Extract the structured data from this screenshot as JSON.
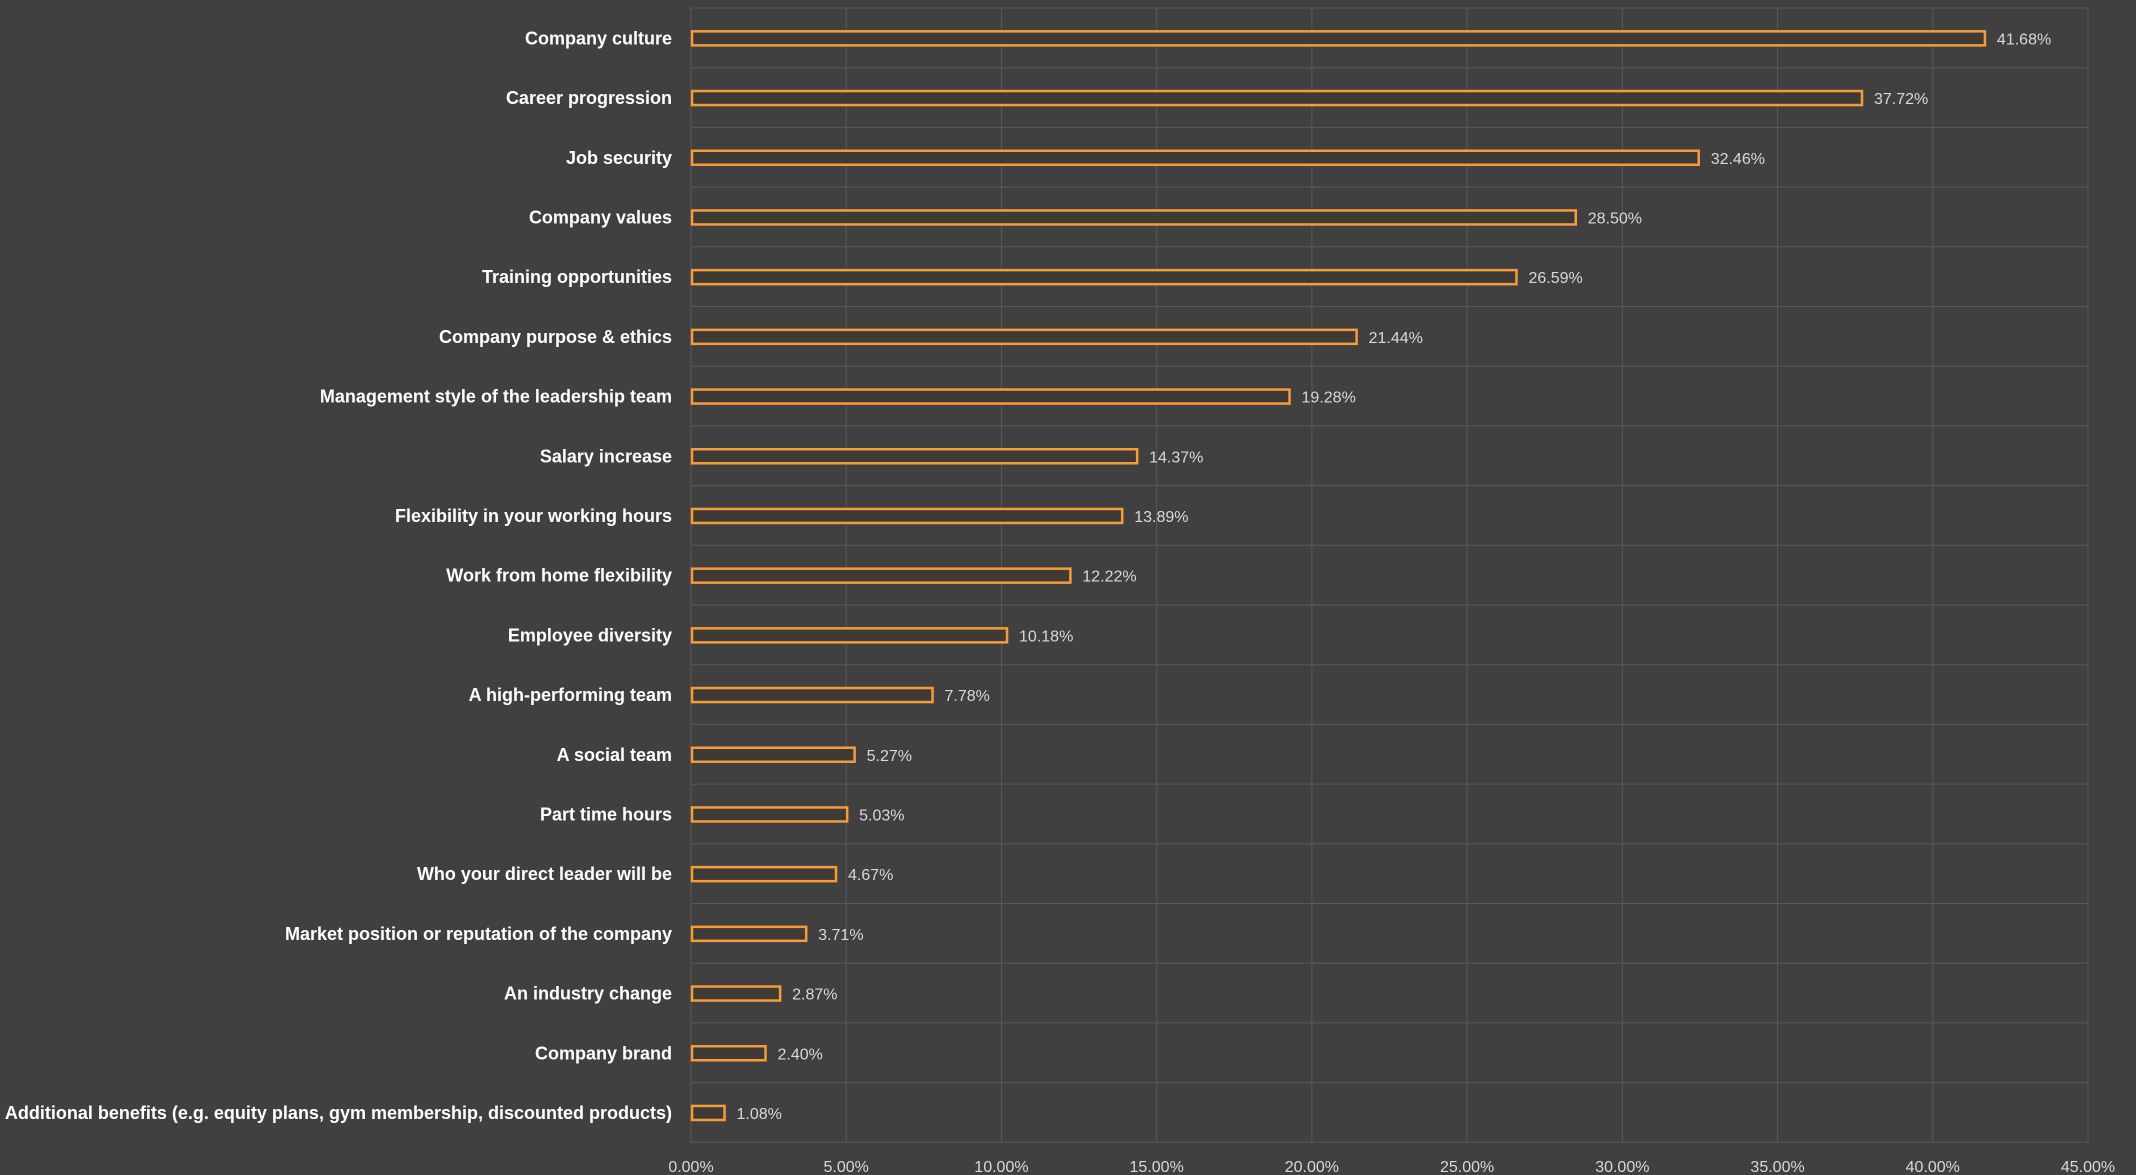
{
  "chart_data": {
    "type": "bar",
    "orientation": "horizontal",
    "categories": [
      "Company culture",
      "Career progression",
      "Job security",
      "Company values",
      "Training opportunities",
      "Company purpose & ethics",
      "Management style of the leadership team",
      "Salary increase",
      "Flexibility in your working hours",
      "Work from home flexibility",
      "Employee diversity",
      "A high-performing team",
      "A social team",
      "Part time hours",
      "Who your direct leader will be",
      "Market position or reputation of the company",
      "An industry change",
      "Company brand",
      "Additional benefits (e.g. equity plans, gym membership, discounted products)"
    ],
    "values": [
      41.68,
      37.72,
      32.46,
      28.5,
      26.59,
      21.44,
      19.28,
      14.37,
      13.89,
      12.22,
      10.18,
      7.78,
      5.27,
      5.03,
      4.67,
      3.71,
      2.87,
      2.4,
      1.08
    ],
    "value_labels": [
      "41.68%",
      "37.72%",
      "32.46%",
      "28.50%",
      "26.59%",
      "21.44%",
      "19.28%",
      "14.37%",
      "13.89%",
      "12.22%",
      "10.18%",
      "7.78%",
      "5.27%",
      "5.03%",
      "4.67%",
      "3.71%",
      "2.87%",
      "2.40%",
      "1.08%"
    ],
    "xlim": [
      0,
      45
    ],
    "x_ticks": [
      "0.00%",
      "5.00%",
      "10.00%",
      "15.00%",
      "20.00%",
      "25.00%",
      "30.00%",
      "35.00%",
      "40.00%",
      "45.00%"
    ],
    "grid": true,
    "title": "",
    "xlabel": "",
    "ylabel": "",
    "colors": {
      "background": "#404040",
      "bar_outline": "#f79b3a",
      "bar_fill": "#3e3b37",
      "grid": "#595959",
      "category_text": "#ffffff",
      "value_text": "#d9d9d9"
    }
  }
}
